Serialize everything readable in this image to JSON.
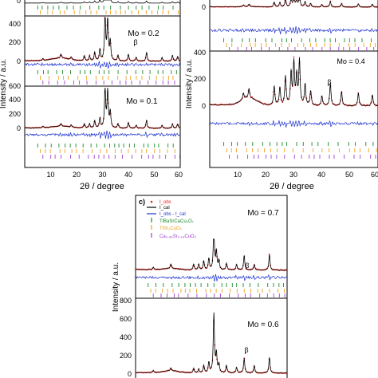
{
  "figure": {
    "colors": {
      "obs": "#e8201a",
      "calc": "#000000",
      "diff": "#1a2fd0",
      "tick1": "#1a8a2a",
      "tick2": "#f0a020",
      "tick3": "#a040d0",
      "frame": "#000000",
      "background": "#ffffff"
    }
  },
  "chart_data": [
    {
      "type": "line",
      "panel": "a-upper",
      "label": "Mo = 0.2",
      "xlabel": "",
      "ylabel": "",
      "xlim": [
        0,
        60
      ],
      "ylim": [
        -100,
        500
      ],
      "y_ticks": [
        "0",
        "200",
        "400"
      ],
      "annotation": "β",
      "peaks": [
        [
          7,
          20
        ],
        [
          14,
          40
        ],
        [
          18,
          25
        ],
        [
          23,
          55
        ],
        [
          25,
          50
        ],
        [
          27,
          90
        ],
        [
          29,
          120
        ],
        [
          31,
          460
        ],
        [
          32,
          440
        ],
        [
          33,
          200
        ],
        [
          36,
          60
        ],
        [
          40,
          70
        ],
        [
          43,
          40
        ],
        [
          47,
          90
        ],
        [
          53,
          40
        ],
        [
          57,
          60
        ],
        [
          59,
          50
        ]
      ],
      "tick_series": 3
    },
    {
      "type": "line",
      "panel": "a-lower",
      "label": "Mo = 0.1",
      "xlabel": "2θ / degree",
      "ylabel": "Intensity / a.u.",
      "xlim": [
        0,
        60
      ],
      "ylim": [
        -100,
        600
      ],
      "y_ticks": [
        "0",
        "200",
        "400",
        "600"
      ],
      "x_ticks": [
        "10",
        "20",
        "30",
        "40",
        "50",
        "60"
      ],
      "peaks": [
        [
          7,
          20
        ],
        [
          14,
          35
        ],
        [
          18,
          30
        ],
        [
          23,
          60
        ],
        [
          25,
          60
        ],
        [
          27,
          100
        ],
        [
          29,
          130
        ],
        [
          31,
          540
        ],
        [
          32,
          520
        ],
        [
          33,
          220
        ],
        [
          36,
          60
        ],
        [
          40,
          80
        ],
        [
          43,
          40
        ],
        [
          47,
          110
        ],
        [
          53,
          40
        ],
        [
          57,
          60
        ],
        [
          59,
          60
        ]
      ],
      "tick_series": 3
    },
    {
      "type": "line",
      "panel": "b",
      "label": "Mo = 0.4",
      "xlabel": "2θ / degree",
      "ylabel": "Intensity / a.u.",
      "xlim": [
        0,
        60
      ],
      "ylim": [
        -100,
        400
      ],
      "y_ticks": [
        "0",
        "200",
        "400"
      ],
      "x_ticks": [
        "10",
        "20",
        "30",
        "40",
        "50",
        "60"
      ],
      "annotation": "β",
      "peaks": [
        [
          12,
          40
        ],
        [
          14,
          60
        ],
        [
          23,
          120
        ],
        [
          25,
          110
        ],
        [
          27,
          180
        ],
        [
          29,
          200
        ],
        [
          30,
          260
        ],
        [
          31,
          180
        ],
        [
          32,
          280
        ],
        [
          34,
          130
        ],
        [
          36,
          90
        ],
        [
          40,
          60
        ],
        [
          43,
          140
        ],
        [
          47,
          90
        ],
        [
          53,
          80
        ],
        [
          58,
          70
        ]
      ],
      "tick_series": 3
    },
    {
      "type": "line",
      "panel": "c",
      "panel_label": "c)",
      "ylabel": "Intensity / a.u.",
      "xlim": [
        0,
        60
      ],
      "legend": [
        "I_obs",
        "I_cal",
        "I_obs - I_cal",
        "TlBaSrCaCu₂O₇",
        "TlSr₂CuO₅",
        "Ca₀.₈₆Sr₀.₁₄CuO₂"
      ],
      "legend_placement": "top-left",
      "subpanels": [
        {
          "label": "Mo = 0.7",
          "annotation": "β",
          "ylim": [
            -100,
            600
          ],
          "peaks": [
            [
              7,
              20
            ],
            [
              14,
              40
            ],
            [
              23,
              50
            ],
            [
              25,
              50
            ],
            [
              27,
              80
            ],
            [
              29,
              100
            ],
            [
              31,
              360
            ],
            [
              32,
              160
            ],
            [
              33,
              80
            ],
            [
              36,
              60
            ],
            [
              40,
              50
            ],
            [
              43,
              130
            ],
            [
              47,
              50
            ],
            [
              53,
              140
            ]
          ]
        },
        {
          "label": "Mo = 0.6",
          "annotation": "β",
          "ylim": [
            -100,
            800
          ],
          "y_ticks": [
            "0",
            "200",
            "400",
            "600",
            "800"
          ],
          "peaks": [
            [
              7,
              20
            ],
            [
              14,
              30
            ],
            [
              23,
              50
            ],
            [
              25,
              40
            ],
            [
              27,
              80
            ],
            [
              29,
              110
            ],
            [
              31,
              640
            ],
            [
              32,
              200
            ],
            [
              33,
              90
            ],
            [
              36,
              80
            ],
            [
              40,
              60
            ],
            [
              43,
              160
            ],
            [
              47,
              80
            ],
            [
              53,
              170
            ]
          ]
        }
      ]
    }
  ]
}
